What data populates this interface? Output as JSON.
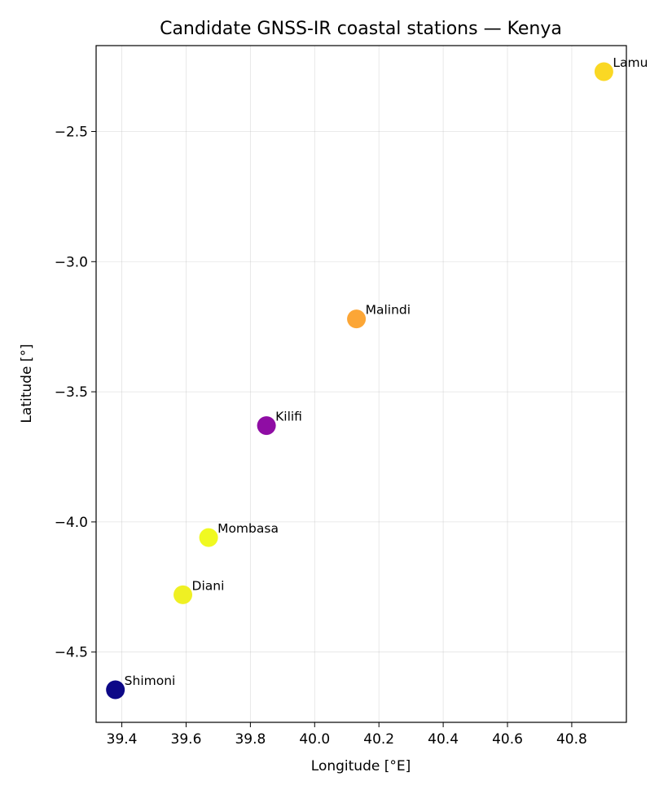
{
  "chart_data": {
    "type": "scatter",
    "title": "Candidate GNSS-IR coastal stations — Kenya",
    "xlabel": "Longitude [°E]",
    "ylabel": "Latitude [°]",
    "xlim": [
      39.32,
      40.97
    ],
    "ylim": [
      -4.77,
      -2.17
    ],
    "x_ticks": [
      39.4,
      39.6,
      39.8,
      40.0,
      40.2,
      40.4,
      40.6,
      40.8
    ],
    "y_ticks": [
      -2.5,
      -3.0,
      -3.5,
      -4.0,
      -4.5
    ],
    "x_tick_labels": [
      "39.4",
      "39.6",
      "39.8",
      "40.0",
      "40.2",
      "40.4",
      "40.6",
      "40.8"
    ],
    "y_tick_labels": [
      "−2.5",
      "−3.0",
      "−3.5",
      "−4.0",
      "−4.5"
    ],
    "grid": true,
    "points": [
      {
        "label": "Lamu",
        "x": 40.9,
        "y": -2.27,
        "color": "#fad824"
      },
      {
        "label": "Malindi",
        "x": 40.13,
        "y": -3.22,
        "color": "#fca636"
      },
      {
        "label": "Kilifi",
        "x": 39.85,
        "y": -3.63,
        "color": "#8f0da4"
      },
      {
        "label": "Mombasa",
        "x": 39.67,
        "y": -4.06,
        "color": "#f0f921"
      },
      {
        "label": "Diani",
        "x": 39.59,
        "y": -4.28,
        "color": "#eff023"
      },
      {
        "label": "Shimoni",
        "x": 39.38,
        "y": -4.645,
        "color": "#0d0887"
      }
    ]
  }
}
